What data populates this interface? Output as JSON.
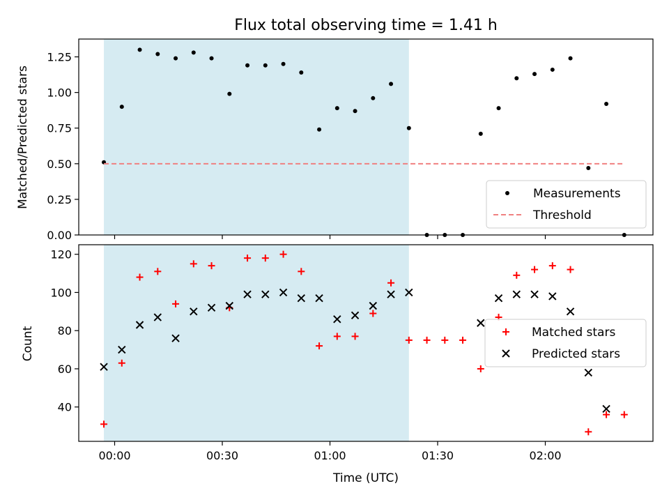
{
  "chart_data": [
    {
      "type": "scatter",
      "title": "Flux total observing time = 1.41 h",
      "xlabel": "",
      "ylabel": "Matched/Predicted stars",
      "xlim": [
        "23:50",
        "02:30"
      ],
      "ylim": [
        0,
        1.375
      ],
      "yticks": [
        0.0,
        0.25,
        0.5,
        0.75,
        1.0,
        1.25
      ],
      "ytick_labels": [
        "0.00",
        "0.25",
        "0.50",
        "0.75",
        "1.00",
        "1.25"
      ],
      "shaded_region": {
        "from": "23:57",
        "to": "01:22",
        "color": "#add8e6"
      },
      "legend_position": "lower right",
      "series": [
        {
          "name": "Measurements",
          "marker": "dot",
          "color": "#000000",
          "x": [
            "23:57",
            "00:02",
            "00:07",
            "00:12",
            "00:17",
            "00:22",
            "00:27",
            "00:32",
            "00:37",
            "00:42",
            "00:47",
            "00:52",
            "00:57",
            "01:02",
            "01:07",
            "01:12",
            "01:17",
            "01:22",
            "01:27",
            "01:32",
            "01:37",
            "01:42",
            "01:47",
            "01:52",
            "01:57",
            "02:02",
            "02:07",
            "02:12",
            "02:17",
            "02:22"
          ],
          "y": [
            0.51,
            0.9,
            1.3,
            1.27,
            1.24,
            1.28,
            1.24,
            0.99,
            1.19,
            1.19,
            1.2,
            1.14,
            0.74,
            0.89,
            0.87,
            0.96,
            1.06,
            0.75,
            0.0,
            0.0,
            0.0,
            0.71,
            0.89,
            1.1,
            1.13,
            1.16,
            1.24,
            0.47,
            0.92,
            0.0
          ]
        },
        {
          "name": "Threshold",
          "marker": "dashed-line",
          "color": "#f08080",
          "x": [
            "23:57",
            "02:22"
          ],
          "y": [
            0.5,
            0.5
          ]
        }
      ]
    },
    {
      "type": "scatter",
      "title": "",
      "xlabel": "Time (UTC)",
      "ylabel": "Count",
      "xlim": [
        "23:50",
        "02:30"
      ],
      "ylim": [
        22,
        125
      ],
      "yticks": [
        40,
        60,
        80,
        100,
        120
      ],
      "ytick_labels": [
        "40",
        "60",
        "80",
        "100",
        "120"
      ],
      "xticks": [
        "00:00",
        "00:30",
        "01:00",
        "01:30",
        "02:00"
      ],
      "xtick_labels": [
        "00:00",
        "00:30",
        "01:00",
        "01:30",
        "02:00"
      ],
      "shaded_region": {
        "from": "23:57",
        "to": "01:22",
        "color": "#add8e6"
      },
      "legend_position": "center right",
      "series": [
        {
          "name": "Matched stars",
          "marker": "plus",
          "color": "#ff0000",
          "x": [
            "23:57",
            "00:02",
            "00:07",
            "00:12",
            "00:17",
            "00:22",
            "00:27",
            "00:32",
            "00:37",
            "00:42",
            "00:47",
            "00:52",
            "00:57",
            "01:02",
            "01:07",
            "01:12",
            "01:17",
            "01:22",
            "01:27",
            "01:32",
            "01:37",
            "01:42",
            "01:47",
            "01:52",
            "01:57",
            "02:02",
            "02:07",
            "02:12",
            "02:17",
            "02:22"
          ],
          "y": [
            31,
            63,
            108,
            111,
            94,
            115,
            114,
            92,
            118,
            118,
            120,
            111,
            72,
            77,
            77,
            89,
            105,
            75,
            75,
            75,
            75,
            60,
            87,
            109,
            112,
            114,
            112,
            27,
            36,
            36
          ]
        },
        {
          "name": "Predicted stars",
          "marker": "x",
          "color": "#000000",
          "x": [
            "23:57",
            "00:02",
            "00:07",
            "00:12",
            "00:17",
            "00:22",
            "00:27",
            "00:32",
            "00:37",
            "00:42",
            "00:47",
            "00:52",
            "00:57",
            "01:02",
            "01:07",
            "01:12",
            "01:17",
            "01:22",
            "01:42",
            "01:47",
            "01:52",
            "01:57",
            "02:02",
            "02:07",
            "02:12",
            "02:17"
          ],
          "y": [
            61,
            70,
            83,
            87,
            76,
            90,
            92,
            93,
            99,
            99,
            100,
            97,
            97,
            86,
            88,
            93,
            99,
            100,
            84,
            97,
            99,
            99,
            98,
            90,
            58,
            39
          ]
        }
      ]
    }
  ]
}
